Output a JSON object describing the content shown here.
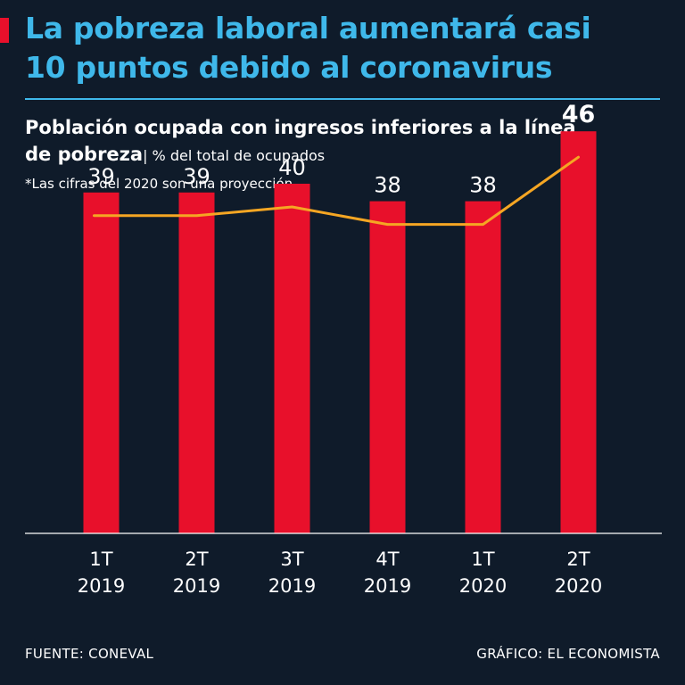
{
  "header": {
    "title_line1": "La pobreza laboral aumentará casi",
    "title_line2": "10 puntos debido al coronavirus",
    "subtitle_bold_1": "Población ocupada con ingresos inferiores a la línea",
    "subtitle_bold_2": "de pobreza",
    "subtitle_unit": "| % del total de ocupados",
    "note": "*Las cifras del 2020 son una proyección"
  },
  "footer": {
    "source": "FUENTE: CONEVAL",
    "credit": "GRÁFICO: EL ECONOMISTA"
  },
  "colors": {
    "background": "#0f1b2a",
    "title": "#3fb8ea",
    "bar": "#e8102b",
    "line": "#f5a623",
    "text": "#ffffff"
  },
  "chart_data": {
    "type": "bar",
    "categories": [
      [
        "1T",
        "2019"
      ],
      [
        "2T",
        "2019"
      ],
      [
        "3T",
        "2019"
      ],
      [
        "4T",
        "2019"
      ],
      [
        "1T",
        "2020"
      ],
      [
        "2T",
        "2020"
      ]
    ],
    "values": [
      39,
      39,
      40,
      38,
      38,
      46
    ],
    "value_labels": [
      "39",
      "39",
      "40",
      "38",
      "38",
      "46"
    ],
    "highlight_index": 5,
    "line_values": [
      39,
      39,
      40,
      38,
      38,
      46
    ],
    "ylim": [
      0,
      50
    ],
    "grid": false,
    "legend": "none"
  }
}
